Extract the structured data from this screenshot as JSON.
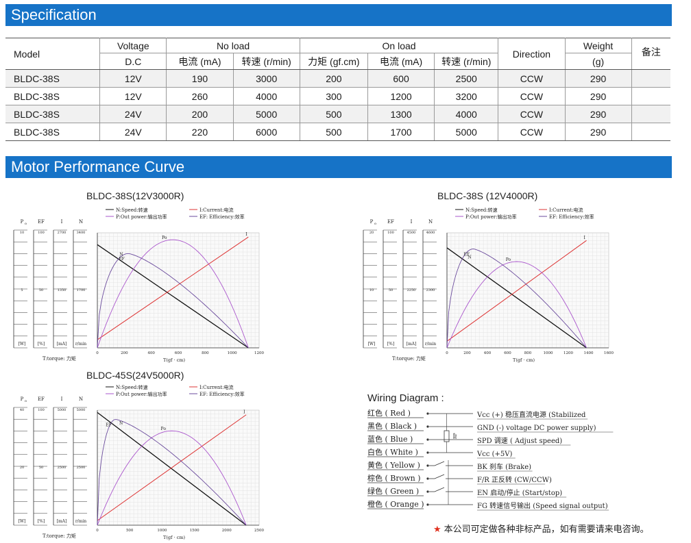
{
  "sections": {
    "specification": "Specification",
    "performance": "Motor Performance Curve"
  },
  "table": {
    "headers": {
      "model": "Model",
      "voltage": "Voltage",
      "voltage_sub": "D.C",
      "no_load": "No load",
      "on_load": "On load",
      "current_ma": "电流 (mA)",
      "speed_rmin": "转速 (r/min)",
      "torque": "力矩 (gf.cm)",
      "direction": "Direction",
      "weight": "Weight",
      "weight_sub": "(g)",
      "note": "备注"
    },
    "rows": [
      {
        "model": "BLDC-38S",
        "voltage": "12V",
        "nl_current": "190",
        "nl_speed": "3000",
        "torque": "200",
        "ol_current": "600",
        "ol_speed": "2500",
        "direction": "CCW",
        "weight": "290",
        "note": ""
      },
      {
        "model": "BLDC-38S",
        "voltage": "12V",
        "nl_current": "260",
        "nl_speed": "4000",
        "torque": "300",
        "ol_current": "1200",
        "ol_speed": "3200",
        "direction": "CCW",
        "weight": "290",
        "note": ""
      },
      {
        "model": "BLDC-38S",
        "voltage": "24V",
        "nl_current": "200",
        "nl_speed": "5000",
        "torque": "500",
        "ol_current": "1300",
        "ol_speed": "4000",
        "direction": "CCW",
        "weight": "290",
        "note": ""
      },
      {
        "model": "BLDC-38S",
        "voltage": "24V",
        "nl_current": "220",
        "nl_speed": "6000",
        "torque": "500",
        "ol_current": "1700",
        "ol_speed": "5000",
        "direction": "CCW",
        "weight": "290",
        "note": ""
      }
    ]
  },
  "chart_legend": {
    "speed": "N:Speed:转速",
    "power": "P:Out power:输出功率",
    "current": "I:Current:电流",
    "efficiency": "EF: Efficiency:效率",
    "col_p": "P",
    "col_p_sub": "o",
    "col_ef": "EF",
    "col_i": "I",
    "col_n": "N",
    "unit_w": "[W]",
    "unit_pct": "[%]",
    "unit_ma": "[mA]",
    "unit_rmin": "r/min",
    "torque_label": "T:torque: 力矩",
    "xlabel": "T(gf · cm)",
    "curve_n": "N",
    "curve_ef": "EF",
    "curve_po": "Po",
    "curve_i": "I"
  },
  "chart_data": [
    {
      "type": "line",
      "title": "BLDC-38S(12V3000R)",
      "xlabel": "T(gf · cm)",
      "x_ticks": [
        "0",
        "200",
        "400",
        "600",
        "800",
        "1000",
        "1200"
      ],
      "xlim": [
        0,
        1200
      ],
      "stall_torque": 1120,
      "p_ticks": [
        "10",
        "5"
      ],
      "ef_ticks": [
        "100",
        "50"
      ],
      "i_ticks": [
        "2700",
        "1350"
      ],
      "n_ticks": [
        "3400",
        "1700"
      ],
      "series": [
        {
          "name": "N",
          "color": "#111111",
          "points": [
            [
              0,
              3050
            ],
            [
              1120,
              0
            ]
          ]
        },
        {
          "name": "I",
          "color": "#dd3333",
          "points": [
            [
              0,
              190
            ],
            [
              1120,
              2600
            ]
          ]
        },
        {
          "name": "Po",
          "color": "#aa55cc",
          "peak_x": 560,
          "peak_frac": 0.94
        },
        {
          "name": "EF",
          "color": "#6a4a9c",
          "peak_x": 230,
          "peak_frac": 0.82
        }
      ]
    },
    {
      "type": "line",
      "title": "BLDC-38S (12V4000R)",
      "xlabel": "T(gf · cm)",
      "x_ticks": [
        "0",
        "200",
        "400",
        "600",
        "800",
        "1000",
        "1200",
        "1400",
        "1600"
      ],
      "xlim": [
        0,
        1600
      ],
      "stall_torque": 1380,
      "p_ticks": [
        "20",
        "10"
      ],
      "ef_ticks": [
        "100",
        "50"
      ],
      "i_ticks": [
        "4500",
        "2250"
      ],
      "n_ticks": [
        "4600",
        "2300"
      ],
      "series": [
        {
          "name": "N",
          "color": "#111111",
          "points": [
            [
              0,
              4000
            ],
            [
              1380,
              0
            ]
          ]
        },
        {
          "name": "I",
          "color": "#dd3333",
          "points": [
            [
              0,
              260
            ],
            [
              1380,
              4200
            ]
          ]
        },
        {
          "name": "Po",
          "color": "#aa55cc",
          "peak_x": 700,
          "peak_frac": 0.75
        },
        {
          "name": "EF",
          "color": "#6a4a9c",
          "peak_x": 260,
          "peak_frac": 0.86
        }
      ]
    },
    {
      "type": "line",
      "title": "BLDC-45S(24V5000R)",
      "xlabel": "T(gf · cm)",
      "x_ticks": [
        "0",
        "500",
        "1000",
        "1500",
        "2000",
        "2500"
      ],
      "xlim": [
        0,
        2500
      ],
      "stall_torque": 2300,
      "p_ticks": [
        "40",
        "20"
      ],
      "ef_ticks": [
        "100",
        "50"
      ],
      "i_ticks": [
        "5000",
        "2500"
      ],
      "n_ticks": [
        "5000",
        "2500"
      ],
      "series": [
        {
          "name": "N",
          "color": "#111111",
          "points": [
            [
              0,
              4900
            ],
            [
              2300,
              0
            ]
          ]
        },
        {
          "name": "I",
          "color": "#dd3333",
          "points": [
            [
              0,
              200
            ],
            [
              2300,
              4800
            ]
          ]
        },
        {
          "name": "Po",
          "color": "#aa55cc",
          "peak_x": 1150,
          "peak_frac": 0.82
        },
        {
          "name": "EF",
          "color": "#6a4a9c",
          "peak_x": 280,
          "peak_frac": 0.92
        }
      ]
    }
  ],
  "wiring": {
    "title": "Wiring Diagram :",
    "rp": "RP",
    "wires": [
      {
        "color": "红色 ( Red )",
        "desc": "Vcc (+) 稳压直流电源 (Stabilized"
      },
      {
        "color": "黑色 ( Black )",
        "desc": "GND (-) voltage DC power supply)"
      },
      {
        "color": "蓝色 ( Blue )",
        "desc": "SPD 调速 ( Adjust speed)"
      },
      {
        "color": "白色 ( White )",
        "desc": "Vcc (+5V)"
      },
      {
        "color": "黄色 ( Yellow )",
        "desc": "BK 刹车 (Brake)"
      },
      {
        "color": "棕色 ( Brown )",
        "desc": "F/R 正反转 (CW/CCW)"
      },
      {
        "color": "绿色 ( Green )",
        "desc": "EN 启动/停止 (Start/stop)"
      },
      {
        "color": "橙色 ( Orange )",
        "desc": "FG 转速信号输出 (Speed signal output)"
      }
    ]
  },
  "footnote": "本公司可定做各种非标产品，如有需要请来电咨询。"
}
